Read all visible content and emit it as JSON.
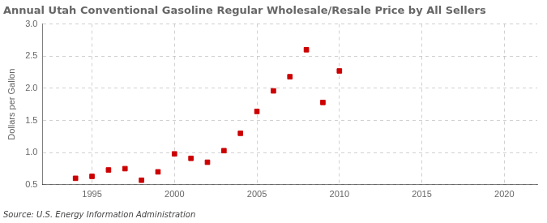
{
  "chart_data": {
    "type": "scatter",
    "title": "Annual Utah Conventional Gasoline Regular Wholesale/Resale Price by All Sellers",
    "y_label": "Dollars per Gallon",
    "source": "Source: U.S. Energy Information Administration",
    "x": [
      1994,
      1995,
      1996,
      1997,
      1998,
      1999,
      2000,
      2001,
      2002,
      2003,
      2004,
      2005,
      2006,
      2007,
      2008,
      2009,
      2010
    ],
    "values": [
      0.6,
      0.63,
      0.73,
      0.75,
      0.57,
      0.7,
      0.98,
      0.91,
      0.85,
      1.03,
      1.3,
      1.64,
      1.96,
      2.18,
      2.6,
      1.78,
      2.27
    ],
    "color": "#CC0000",
    "marker": "square",
    "xlim": [
      1992,
      2022
    ],
    "xticks": [
      1995,
      2000,
      2005,
      2010,
      2015,
      2020
    ],
    "ylim": [
      0.5,
      3.0
    ],
    "yticks": [
      0.5,
      {
        "value": 1.0,
        "label": "1.0"
      },
      1.5,
      {
        "value": 2.0,
        "label": "2.0"
      },
      2.5,
      {
        "value": 3.0,
        "label": "3.0"
      }
    ],
    "grid": true
  }
}
